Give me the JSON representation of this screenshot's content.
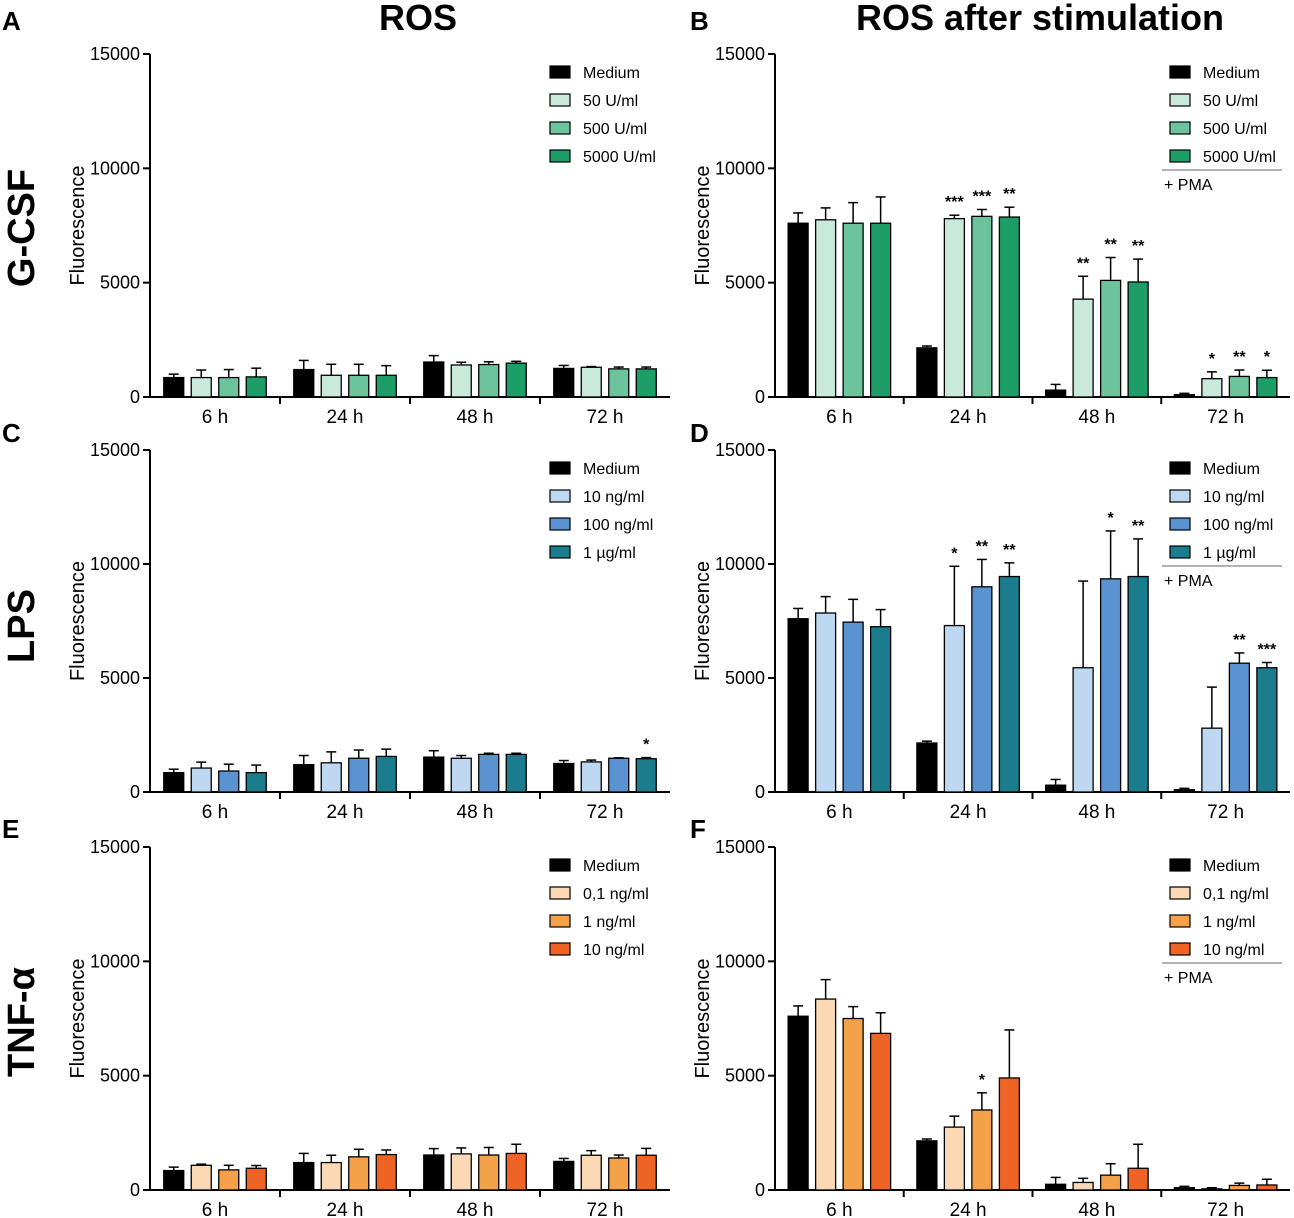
{
  "column_titles": [
    "ROS",
    "ROS after stimulation"
  ],
  "row_labels": [
    "G-CSF",
    "LPS",
    "TNF-α"
  ],
  "palettes": {
    "gcsf": [
      "#000000",
      "#c9e9da",
      "#6cc49c",
      "#1d9e68"
    ],
    "lps": [
      "#000000",
      "#bdd8f0",
      "#5b93d2",
      "#1a7c8c"
    ],
    "tnf": [
      "#000000",
      "#fbd9b5",
      "#f4a24a",
      "#ee6424"
    ]
  },
  "chart_data": [
    {
      "panel": "A",
      "type": "bar",
      "palette": "gcsf",
      "title": "",
      "xlabel": "",
      "ylabel": "Fluorescence",
      "ylim": [
        0,
        15000
      ],
      "yticks": [
        "0",
        "5000",
        "10000",
        "15000"
      ],
      "categories": [
        "6 h",
        "24 h",
        "48 h",
        "72 h"
      ],
      "series": [
        {
          "name": "Medium",
          "values": [
            850,
            1200,
            1530,
            1250
          ],
          "errors": [
            150,
            400,
            280,
            130
          ]
        },
        {
          "name": "50 U/ml",
          "values": [
            850,
            950,
            1400,
            1300
          ],
          "errors": [
            330,
            480,
            120,
            30
          ]
        },
        {
          "name": "500 U/ml",
          "values": [
            850,
            950,
            1420,
            1230
          ],
          "errors": [
            350,
            480,
            120,
            80
          ]
        },
        {
          "name": "5000 U/ml",
          "values": [
            880,
            950,
            1480,
            1230
          ],
          "errors": [
            380,
            420,
            80,
            80
          ]
        }
      ],
      "significance": [
        [
          "",
          "",
          "",
          ""
        ],
        [
          "",
          "",
          "",
          ""
        ],
        [
          "",
          "",
          "",
          ""
        ],
        [
          "",
          "",
          "",
          ""
        ]
      ],
      "legend_note": ""
    },
    {
      "panel": "B",
      "type": "bar",
      "palette": "gcsf",
      "title": "",
      "xlabel": "",
      "ylabel": "Fluorescence",
      "ylim": [
        0,
        15000
      ],
      "yticks": [
        "0",
        "5000",
        "10000",
        "15000"
      ],
      "categories": [
        "6 h",
        "24 h",
        "48 h",
        "72 h"
      ],
      "series": [
        {
          "name": "Medium",
          "values": [
            7600,
            2150,
            300,
            100
          ],
          "errors": [
            450,
            80,
            250,
            60
          ]
        },
        {
          "name": "50 U/ml",
          "values": [
            7750,
            7800,
            4280,
            800
          ],
          "errors": [
            520,
            150,
            1000,
            300
          ]
        },
        {
          "name": "500 U/ml",
          "values": [
            7600,
            7900,
            5100,
            900
          ],
          "errors": [
            900,
            300,
            1000,
            280
          ]
        },
        {
          "name": "5000 U/ml",
          "values": [
            7600,
            7870,
            5030,
            850
          ],
          "errors": [
            1150,
            430,
            1000,
            320
          ]
        }
      ],
      "significance": [
        [
          "",
          "",
          "",
          ""
        ],
        [
          "",
          "***",
          "**",
          "*"
        ],
        [
          "",
          "***",
          "**",
          "**"
        ],
        [
          "",
          "**",
          "**",
          "*"
        ]
      ],
      "legend_note": "+ PMA"
    },
    {
      "panel": "C",
      "type": "bar",
      "palette": "lps",
      "title": "",
      "xlabel": "",
      "ylabel": "Fluorescence",
      "ylim": [
        0,
        15000
      ],
      "yticks": [
        "0",
        "5000",
        "10000",
        "15000"
      ],
      "categories": [
        "6 h",
        "24 h",
        "48 h",
        "72 h"
      ],
      "series": [
        {
          "name": "Medium",
          "values": [
            850,
            1200,
            1530,
            1250
          ],
          "errors": [
            150,
            400,
            280,
            130
          ]
        },
        {
          "name": "10 ng/ml",
          "values": [
            1050,
            1280,
            1480,
            1320
          ],
          "errors": [
            260,
            480,
            120,
            80
          ]
        },
        {
          "name": "100 ng/ml",
          "values": [
            920,
            1480,
            1650,
            1480
          ],
          "errors": [
            300,
            360,
            50,
            20
          ]
        },
        {
          "name": "1 µg/ml",
          "values": [
            850,
            1560,
            1650,
            1460
          ],
          "errors": [
            330,
            320,
            50,
            50
          ]
        }
      ],
      "significance": [
        [
          "",
          "",
          "",
          ""
        ],
        [
          "",
          "",
          "",
          ""
        ],
        [
          "",
          "",
          "",
          ""
        ],
        [
          "",
          "",
          "",
          "*"
        ]
      ],
      "legend_note": ""
    },
    {
      "panel": "D",
      "type": "bar",
      "palette": "lps",
      "title": "",
      "xlabel": "",
      "ylabel": "Fluorescence",
      "ylim": [
        0,
        15000
      ],
      "yticks": [
        "0",
        "5000",
        "10000",
        "15000"
      ],
      "categories": [
        "6 h",
        "24 h",
        "48 h",
        "72 h"
      ],
      "series": [
        {
          "name": "Medium",
          "values": [
            7600,
            2150,
            300,
            100
          ],
          "errors": [
            450,
            80,
            250,
            60
          ]
        },
        {
          "name": "10 ng/ml",
          "values": [
            7850,
            7300,
            5450,
            2800
          ],
          "errors": [
            720,
            2600,
            3800,
            1800
          ]
        },
        {
          "name": "100 ng/ml",
          "values": [
            7450,
            9000,
            9350,
            5650
          ],
          "errors": [
            1000,
            1200,
            2100,
            450
          ]
        },
        {
          "name": "1 µg/ml",
          "values": [
            7250,
            9450,
            9450,
            5450
          ],
          "errors": [
            750,
            600,
            1650,
            230
          ]
        }
      ],
      "significance": [
        [
          "",
          "",
          "",
          ""
        ],
        [
          "",
          "*",
          "",
          ""
        ],
        [
          "",
          "**",
          "*",
          "**"
        ],
        [
          "",
          "**",
          "**",
          "***"
        ]
      ],
      "legend_note": "+ PMA"
    },
    {
      "panel": "E",
      "type": "bar",
      "palette": "tnf",
      "title": "",
      "xlabel": "",
      "ylabel": "Fluorescence",
      "ylim": [
        0,
        15000
      ],
      "yticks": [
        "0",
        "5000",
        "10000",
        "15000"
      ],
      "categories": [
        "6 h",
        "24 h",
        "48 h",
        "72 h"
      ],
      "series": [
        {
          "name": "Medium",
          "values": [
            850,
            1200,
            1530,
            1250
          ],
          "errors": [
            150,
            400,
            280,
            130
          ]
        },
        {
          "name": "0,1 ng/ml",
          "values": [
            1080,
            1200,
            1580,
            1520
          ],
          "errors": [
            50,
            320,
            260,
            200
          ]
        },
        {
          "name": "1 ng/ml",
          "values": [
            880,
            1450,
            1530,
            1400
          ],
          "errors": [
            200,
            330,
            330,
            130
          ]
        },
        {
          "name": "10 ng/ml",
          "values": [
            950,
            1550,
            1600,
            1520
          ],
          "errors": [
            120,
            200,
            400,
            300
          ]
        }
      ],
      "significance": [
        [
          "",
          "",
          "",
          ""
        ],
        [
          "",
          "",
          "",
          ""
        ],
        [
          "",
          "",
          "",
          ""
        ],
        [
          "",
          "",
          "",
          ""
        ]
      ],
      "legend_note": ""
    },
    {
      "panel": "F",
      "type": "bar",
      "palette": "tnf",
      "title": "",
      "xlabel": "",
      "ylabel": "Fluorescence",
      "ylim": [
        0,
        15000
      ],
      "yticks": [
        "0",
        "5000",
        "10000",
        "15000"
      ],
      "categories": [
        "6 h",
        "24 h",
        "48 h",
        "72 h"
      ],
      "series": [
        {
          "name": "Medium",
          "values": [
            7600,
            2150,
            250,
            100
          ],
          "errors": [
            450,
            80,
            300,
            60
          ]
        },
        {
          "name": "0,1 ng/ml",
          "values": [
            8350,
            2750,
            330,
            50
          ],
          "errors": [
            850,
            480,
            180,
            50
          ]
        },
        {
          "name": "1 ng/ml",
          "values": [
            7500,
            3500,
            650,
            200
          ],
          "errors": [
            520,
            750,
            500,
            100
          ]
        },
        {
          "name": "10 ng/ml",
          "values": [
            6850,
            4900,
            950,
            220
          ],
          "errors": [
            900,
            2100,
            1050,
            250
          ]
        }
      ],
      "significance": [
        [
          "",
          "",
          "",
          ""
        ],
        [
          "",
          "",
          "",
          ""
        ],
        [
          "",
          "*",
          "",
          ""
        ],
        [
          "",
          "",
          "",
          ""
        ]
      ],
      "legend_note": "+ PMA"
    }
  ]
}
